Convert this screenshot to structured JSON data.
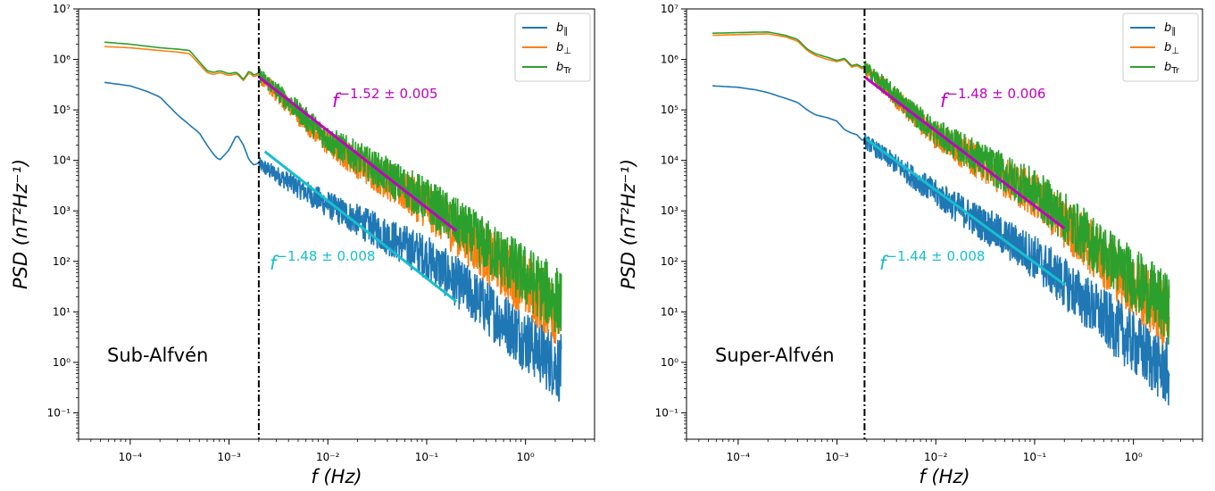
{
  "chart_data": [
    {
      "type": "line",
      "panel_label": "Sub-Alfvén",
      "xlabel": "f (Hz)",
      "ylabel": "PSD (nT²Hz⁻¹)",
      "xscale": "log",
      "yscale": "log",
      "xlim": [
        3e-05,
        5.0
      ],
      "ylim": [
        0.03,
        10000000
      ],
      "x_ticks": [
        "10⁻⁴",
        "10⁻³",
        "10⁻²",
        "10⁻¹",
        "10⁰"
      ],
      "y_ticks": [
        "10⁻¹",
        "10⁰",
        "10¹",
        "10²",
        "10³",
        "10⁴",
        "10⁵",
        "10⁶",
        "10⁷"
      ],
      "vline_x": 0.002,
      "legend": {
        "placement": "top-right",
        "entries": [
          "b∥",
          "b⊥",
          "bTr"
        ]
      },
      "series": [
        {
          "name": "b∥",
          "color": "#1f77b4",
          "x": [
            5.5e-05,
            0.0001,
            0.00015,
            0.0002,
            0.0003,
            0.0004,
            0.0005,
            0.0006,
            0.0007,
            0.0008,
            0.001,
            0.0012,
            0.0014,
            0.0016,
            0.0018,
            0.002,
            0.01,
            0.1,
            2.3
          ],
          "y": [
            350000,
            300000,
            230000,
            180000,
            80000,
            50000,
            35000,
            20000,
            13000,
            10000,
            16000,
            33000,
            20000,
            10000,
            8000,
            9000,
            1500,
            150,
            1
          ]
        },
        {
          "name": "b⊥",
          "color": "#ff7f0e",
          "x": [
            5.5e-05,
            0.0001,
            0.0002,
            0.0003,
            0.0004,
            0.0005,
            0.0006,
            0.0007,
            0.0008,
            0.001,
            0.0012,
            0.0014,
            0.0016,
            0.0018,
            0.002,
            0.01,
            0.1,
            2.3
          ],
          "y": [
            1800000,
            1700000,
            1500000,
            1400000,
            1300000,
            800000,
            550000,
            500000,
            550000,
            480000,
            520000,
            380000,
            550000,
            450000,
            500000,
            25000,
            1500,
            12
          ]
        },
        {
          "name": "bTr",
          "color": "#2ca02c",
          "x": [
            5.5e-05,
            0.0001,
            0.0002,
            0.0003,
            0.0004,
            0.0005,
            0.0006,
            0.0007,
            0.0008,
            0.001,
            0.0012,
            0.0014,
            0.0016,
            0.0018,
            0.002,
            0.01,
            0.1,
            2.3
          ],
          "y": [
            2200000,
            2000000,
            1700000,
            1600000,
            1500000,
            900000,
            600000,
            550000,
            600000,
            520000,
            560000,
            400000,
            600000,
            480000,
            550000,
            30000,
            2000,
            20
          ]
        }
      ],
      "fits": [
        {
          "label": "f^−1.52 ± 0.005",
          "color": "#c000c0",
          "x": [
            0.002,
            0.2
          ],
          "y": [
            450000,
            400
          ]
        },
        {
          "label": "f^−1.48 ± 0.008",
          "color": "#17becf",
          "x": [
            0.0023,
            0.2
          ],
          "y": [
            15000,
            16
          ]
        }
      ]
    },
    {
      "type": "line",
      "panel_label": "Super-Alfvén",
      "xlabel": "f (Hz)",
      "ylabel": "PSD (nT²Hz⁻¹)",
      "xscale": "log",
      "yscale": "log",
      "xlim": [
        3e-05,
        5.0
      ],
      "ylim": [
        0.03,
        10000000
      ],
      "x_ticks": [
        "10⁻⁴",
        "10⁻³",
        "10⁻²",
        "10⁻¹",
        "10⁰"
      ],
      "y_ticks": [
        "10⁻¹",
        "10⁰",
        "10¹",
        "10²",
        "10³",
        "10⁴",
        "10⁵",
        "10⁶",
        "10⁷"
      ],
      "vline_x": 0.0019,
      "legend": {
        "placement": "top-right",
        "entries": [
          "b∥",
          "b⊥",
          "bTr"
        ]
      },
      "series": [
        {
          "name": "b∥",
          "color": "#1f77b4",
          "x": [
            5.5e-05,
            0.0001,
            0.00015,
            0.0002,
            0.0003,
            0.0004,
            0.0005,
            0.0006,
            0.0008,
            0.001,
            0.0012,
            0.0014,
            0.0016,
            0.0018,
            0.0019,
            0.01,
            0.1,
            2.3
          ],
          "y": [
            300000,
            280000,
            250000,
            220000,
            170000,
            140000,
            100000,
            80000,
            70000,
            60000,
            40000,
            35000,
            32000,
            25000,
            26000,
            2500,
            150,
            0.8
          ]
        },
        {
          "name": "b⊥",
          "color": "#ff7f0e",
          "x": [
            5.5e-05,
            0.0001,
            0.0002,
            0.0003,
            0.0004,
            0.0005,
            0.0006,
            0.0008,
            0.001,
            0.0012,
            0.0014,
            0.0016,
            0.0018,
            0.0019,
            0.01,
            0.1,
            2.3
          ],
          "y": [
            3000000,
            3100000,
            3200000,
            2800000,
            2300000,
            1500000,
            1200000,
            1000000,
            900000,
            1000000,
            700000,
            750000,
            650000,
            700000,
            35000,
            2500,
            10
          ]
        },
        {
          "name": "bTr",
          "color": "#2ca02c",
          "x": [
            5.5e-05,
            0.0001,
            0.0002,
            0.0003,
            0.0004,
            0.0005,
            0.0006,
            0.0008,
            0.001,
            0.0012,
            0.0014,
            0.0016,
            0.0018,
            0.0019,
            0.01,
            0.1,
            2.3
          ],
          "y": [
            3300000,
            3400000,
            3500000,
            3000000,
            2500000,
            1600000,
            1300000,
            1100000,
            950000,
            1050000,
            750000,
            800000,
            700000,
            750000,
            40000,
            3000,
            15
          ]
        }
      ],
      "fits": [
        {
          "label": "f^−1.48 ± 0.006",
          "color": "#c000c0",
          "x": [
            0.0019,
            0.2
          ],
          "y": [
            450000,
            450
          ]
        },
        {
          "label": "f^−1.44 ± 0.008",
          "color": "#17becf",
          "x": [
            0.0019,
            0.2
          ],
          "y": [
            28000,
            35
          ]
        }
      ]
    }
  ]
}
